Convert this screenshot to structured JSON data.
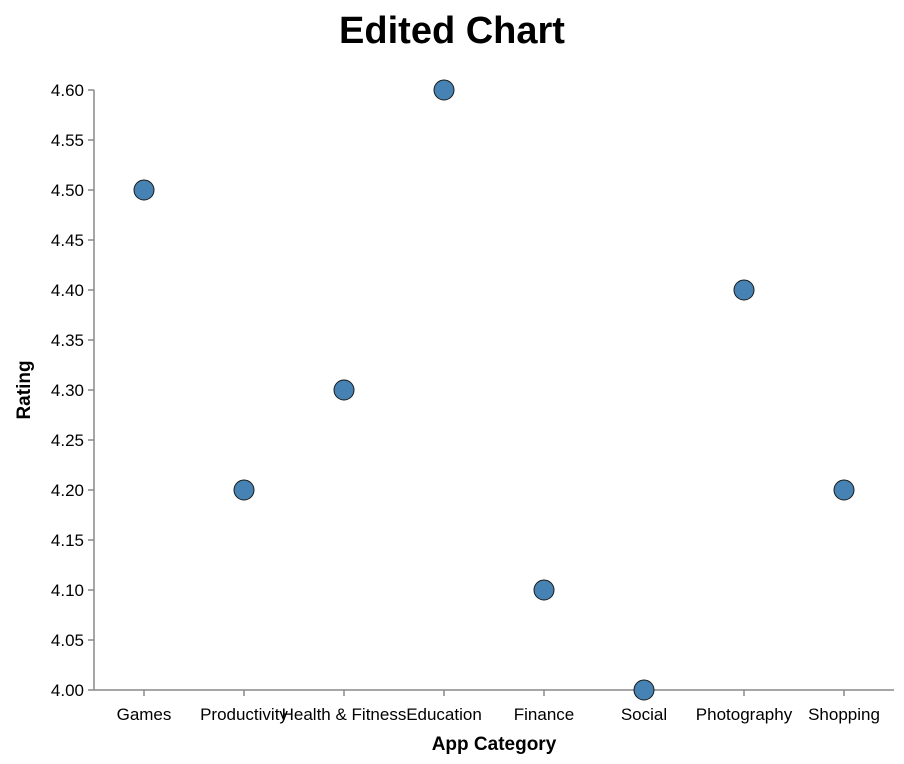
{
  "chart_data": {
    "type": "scatter",
    "title": "Edited Chart",
    "xlabel": "App Category",
    "ylabel": "Rating",
    "categories": [
      "Games",
      "Productivity",
      "Health & Fitness",
      "Education",
      "Finance",
      "Social",
      "Photography",
      "Shopping"
    ],
    "values": [
      4.5,
      4.2,
      4.3,
      4.6,
      4.1,
      4.0,
      4.4,
      4.2
    ],
    "ylim": [
      4.0,
      4.6
    ],
    "yticks": [
      "4.00",
      "4.05",
      "4.10",
      "4.15",
      "4.20",
      "4.25",
      "4.30",
      "4.35",
      "4.40",
      "4.45",
      "4.50",
      "4.55",
      "4.60"
    ],
    "point_color": "#4682b4",
    "grid": false,
    "legend": "none"
  }
}
